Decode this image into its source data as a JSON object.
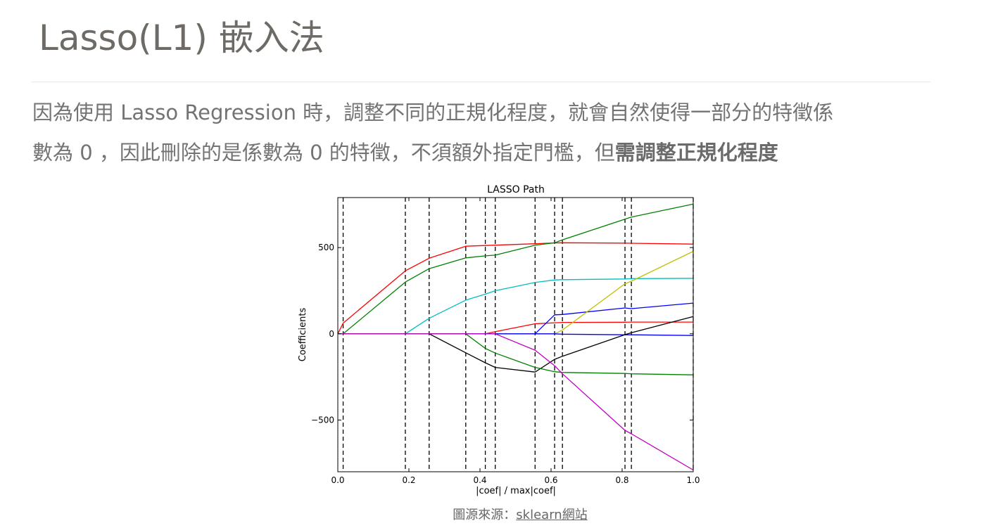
{
  "title": "Lasso(L1) 嵌入法",
  "paragraph": {
    "line1": "因為使用 Lasso Regression 時，調整不同的正規化程度，就會自然使得一部分的特徵係",
    "line2_plain": "數為 0 ，因此刪除的是係數為 0 的特徵，不須額外指定門檻，但",
    "line2_bold": "需調整正規化程度"
  },
  "caption": {
    "prefix": "圖源來源：",
    "link": "sklearn網站"
  },
  "chart_data": {
    "type": "line",
    "title": "LASSO Path",
    "xlabel": "|coef| / max|coef|",
    "ylabel": "Coefficients",
    "xlim": [
      0.0,
      1.0
    ],
    "ylim": [
      -800,
      790
    ],
    "xticks": [
      0.0,
      0.2,
      0.4,
      0.6,
      0.8,
      1.0
    ],
    "xtick_labels": [
      "0.0",
      "0.2",
      "0.4",
      "0.6",
      "0.8",
      "1.0"
    ],
    "yticks": [
      -500,
      0,
      500
    ],
    "ytick_labels": [
      "−500",
      "0",
      "500"
    ],
    "grid": false,
    "legend": false,
    "vertical_dashed_lines": [
      0.015,
      0.19,
      0.257,
      0.36,
      0.415,
      0.443,
      0.555,
      0.61,
      0.632,
      0.808,
      0.826,
      1.0
    ],
    "series": [
      {
        "color": "#ff0000",
        "x": [
          0,
          0.015,
          0.19,
          0.257,
          0.36,
          0.415,
          0.443,
          0.555,
          0.61,
          0.632,
          0.808,
          0.826,
          1.0
        ],
        "y": [
          0,
          62,
          365,
          438,
          508,
          512,
          514,
          522,
          527,
          528,
          526,
          525,
          520
        ]
      },
      {
        "color": "#008000",
        "x": [
          0,
          0.015,
          0.19,
          0.257,
          0.36,
          0.415,
          0.443,
          0.555,
          0.61,
          0.632,
          0.808,
          0.826,
          1.0
        ],
        "y": [
          0,
          0,
          300,
          378,
          440,
          452,
          456,
          514,
          528,
          545,
          665,
          677,
          752
        ]
      },
      {
        "color": "#00bfbf",
        "x": [
          0,
          0.19,
          0.257,
          0.36,
          0.415,
          0.443,
          0.555,
          0.61,
          0.632,
          0.808,
          0.826,
          1.0
        ],
        "y": [
          0,
          0,
          90,
          195,
          230,
          250,
          298,
          312,
          314,
          318,
          320,
          322
        ]
      },
      {
        "color": "#ff0000",
        "x": [
          0,
          0.415,
          0.443,
          0.555,
          0.61,
          0.632,
          0.808,
          0.826,
          1.0
        ],
        "y": [
          0,
          0,
          12,
          58,
          64,
          66,
          67,
          68,
          68
        ]
      },
      {
        "color": "#0000ff",
        "x": [
          0,
          0.555,
          0.61,
          0.632,
          0.808,
          0.826,
          1.0
        ],
        "y": [
          0,
          0,
          110,
          112,
          150,
          146,
          178
        ]
      },
      {
        "color": "#bfbf00",
        "x": [
          0,
          0.61,
          0.632,
          0.808,
          0.826,
          1.0
        ],
        "y": [
          0,
          0,
          22,
          290,
          305,
          478
        ]
      },
      {
        "color": "#0000ff",
        "x": [
          0,
          0.61,
          0.632,
          0.808,
          0.826,
          1.0
        ],
        "y": [
          0,
          0,
          -2,
          -6,
          -6,
          -10
        ]
      },
      {
        "color": "#000000",
        "x": [
          0,
          0.257,
          0.36,
          0.415,
          0.443,
          0.555,
          0.61,
          0.632,
          0.808,
          0.826,
          1.0
        ],
        "y": [
          0,
          0,
          -110,
          -168,
          -195,
          -222,
          -148,
          -130,
          -5,
          6,
          100
        ]
      },
      {
        "color": "#008000",
        "x": [
          0,
          0.36,
          0.415,
          0.443,
          0.555,
          0.61,
          0.632,
          0.808,
          0.826,
          1.0
        ],
        "y": [
          0,
          0,
          -85,
          -112,
          -195,
          -220,
          -224,
          -230,
          -232,
          -238
        ]
      },
      {
        "color": "#bf00bf",
        "x": [
          0,
          0.443,
          0.555,
          0.61,
          0.632,
          0.808,
          0.826,
          1.0
        ],
        "y": [
          0,
          0,
          -95,
          -185,
          -232,
          -560,
          -580,
          -790
        ]
      }
    ]
  }
}
